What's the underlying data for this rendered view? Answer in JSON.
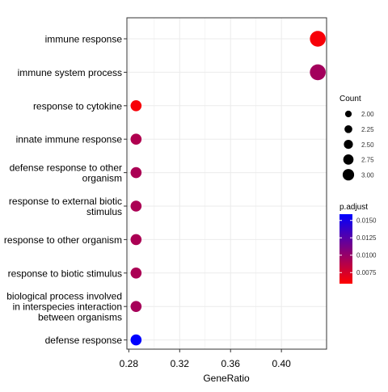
{
  "chart_data": {
    "type": "scatter",
    "title": "",
    "xlabel": "GeneRatio",
    "ylabel": "",
    "xlim": [
      0.2785,
      0.4355
    ],
    "x_ticks": [
      0.28,
      0.32,
      0.36,
      0.4
    ],
    "x_tick_labels": [
      "0.28",
      "0.32",
      "0.36",
      "0.40"
    ],
    "grid": true,
    "legend_placement": "right",
    "categories": [
      "immune response",
      "immune system process",
      "response to cytokine",
      "innate immune response",
      "defense response to other\norganism",
      "response to external biotic\nstimulus",
      "response to other organism",
      "response to biotic stimulus",
      "biological process involved\nin interspecies interaction\nbetween organisms",
      "defense response"
    ],
    "points": [
      {
        "term": "immune response",
        "gene_ratio": 0.4286,
        "count": 3,
        "p_adjust": 0.0062
      },
      {
        "term": "immune system process",
        "gene_ratio": 0.4286,
        "count": 3,
        "p_adjust": 0.0095
      },
      {
        "term": "response to cytokine",
        "gene_ratio": 0.2857,
        "count": 2,
        "p_adjust": 0.0062
      },
      {
        "term": "innate immune response",
        "gene_ratio": 0.2857,
        "count": 2,
        "p_adjust": 0.009
      },
      {
        "term": "defense response to other organism",
        "gene_ratio": 0.2857,
        "count": 2,
        "p_adjust": 0.0092
      },
      {
        "term": "response to external biotic stimulus",
        "gene_ratio": 0.2857,
        "count": 2,
        "p_adjust": 0.0092
      },
      {
        "term": "response to other organism",
        "gene_ratio": 0.2857,
        "count": 2,
        "p_adjust": 0.0092
      },
      {
        "term": "response to biotic stimulus",
        "gene_ratio": 0.2857,
        "count": 2,
        "p_adjust": 0.0092
      },
      {
        "term": "biological process involved in interspecies interaction between organisms",
        "gene_ratio": 0.2857,
        "count": 2,
        "p_adjust": 0.0094
      },
      {
        "term": "defense response",
        "gene_ratio": 0.2857,
        "count": 2,
        "p_adjust": 0.0159
      }
    ],
    "size_legend": {
      "title": "Count",
      "values": [
        2.0,
        2.25,
        2.5,
        2.75,
        3.0
      ],
      "labels": [
        "2.00",
        "2.25",
        "2.50",
        "2.75",
        "3.00"
      ]
    },
    "color_legend": {
      "title": "p.adjust",
      "range": [
        0.0059,
        0.0159
      ],
      "low_color": "#ff0000",
      "high_color": "#0000ff",
      "ticks": [
        0.0075,
        0.01,
        0.0125,
        0.015
      ],
      "tick_labels": [
        "0.0075",
        "0.0100",
        "0.0125",
        "0.0150"
      ]
    }
  }
}
